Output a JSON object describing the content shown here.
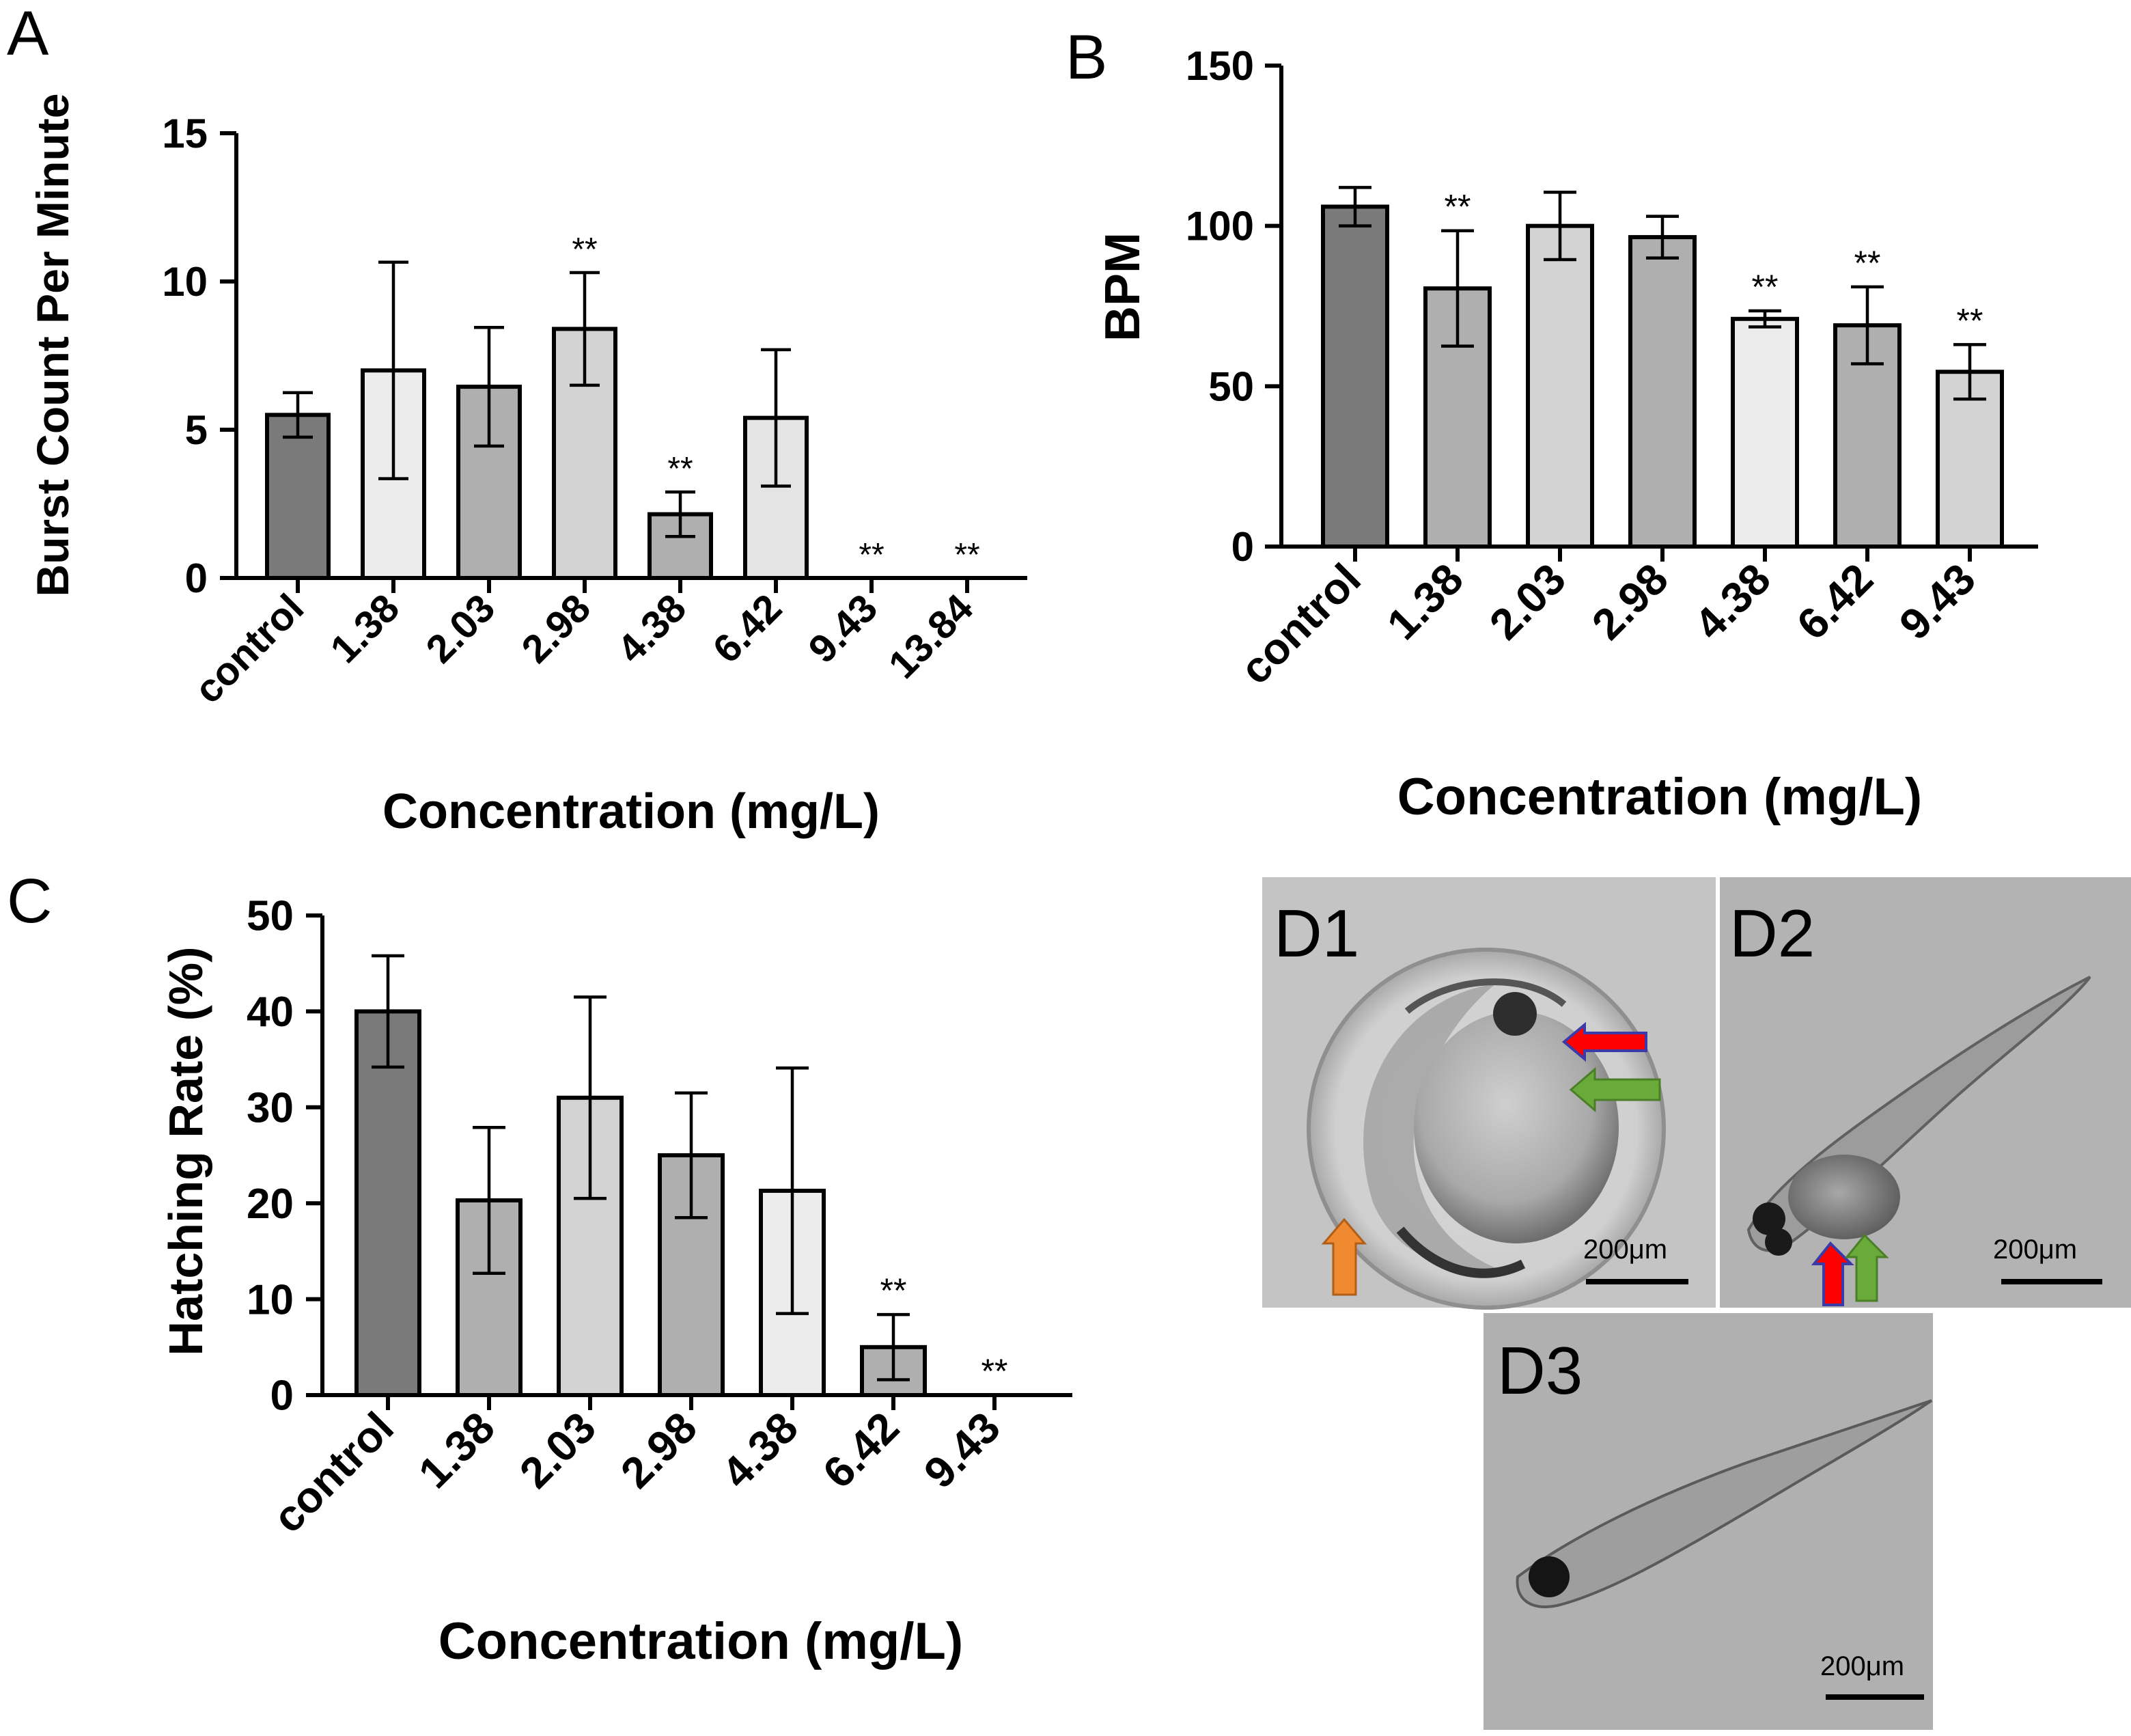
{
  "figure_labels": {
    "A": "A",
    "B": "B",
    "C": "C"
  },
  "chart_data": [
    {
      "panel": "A",
      "type": "bar",
      "title": "",
      "xlabel": "Concentration (mg/L)",
      "ylabel": "Burst Count Per Minute",
      "ylim": [
        0,
        15
      ],
      "yticks": [
        0,
        5,
        10,
        15
      ],
      "categories": [
        "control",
        "1.38",
        "2.03",
        "2.98",
        "4.38",
        "6.42",
        "9.43",
        "13.84"
      ],
      "values": [
        5.5,
        7.0,
        6.45,
        8.4,
        2.15,
        5.4,
        0,
        0
      ],
      "errors": [
        0.75,
        3.65,
        2.0,
        1.9,
        0.75,
        2.3,
        0,
        0
      ],
      "significance": [
        "",
        "",
        "",
        "**",
        "**",
        "",
        "**",
        "**"
      ],
      "bar_colors": [
        "#7a7a7a",
        "#ececec",
        "#afafaf",
        "#d3d3d3",
        "#afafaf",
        "#e4e4e4",
        "#c8c8c8",
        "#c8c8c8"
      ]
    },
    {
      "panel": "B",
      "type": "bar",
      "title": "",
      "xlabel": "Concentration (mg/L)",
      "ylabel": "BPM",
      "ylim": [
        0,
        150
      ],
      "yticks": [
        0,
        50,
        100,
        150
      ],
      "categories": [
        "control",
        "1.38",
        "2.03",
        "2.98",
        "4.38",
        "6.42",
        "9.43"
      ],
      "values": [
        106,
        80.5,
        100,
        96.5,
        71,
        69,
        54.5
      ],
      "errors": [
        6,
        18,
        10.5,
        6.5,
        2.5,
        12,
        8.5
      ],
      "significance": [
        "",
        "**",
        "",
        "",
        "**",
        "**",
        "**"
      ],
      "bar_colors": [
        "#7a7a7a",
        "#afafaf",
        "#d3d3d3",
        "#afafaf",
        "#ececec",
        "#afafaf",
        "#d3d3d3"
      ]
    },
    {
      "panel": "C",
      "type": "bar",
      "title": "",
      "xlabel": "Concentration (mg/L)",
      "ylabel": "Hatching Rate (%)",
      "ylim": [
        0,
        50
      ],
      "yticks": [
        0,
        10,
        20,
        30,
        40,
        50
      ],
      "categories": [
        "control",
        "1.38",
        "2.03",
        "2.98",
        "4.38",
        "6.42",
        "9.43"
      ],
      "values": [
        40,
        20.3,
        31,
        25,
        21.3,
        5,
        0
      ],
      "errors": [
        5.8,
        7.6,
        10.5,
        6.5,
        12.8,
        3.4,
        0
      ],
      "significance": [
        "",
        "",
        "",
        "",
        "",
        "**",
        "**"
      ],
      "bar_colors": [
        "#7a7a7a",
        "#afafaf",
        "#d3d3d3",
        "#afafaf",
        "#ececec",
        "#afafaf",
        "#d3d3d3"
      ]
    }
  ],
  "micrographs": [
    {
      "label": "D1",
      "scale_bar": "200μm"
    },
    {
      "label": "D2",
      "scale_bar": "200μm"
    },
    {
      "label": "D3",
      "scale_bar": "200μm"
    }
  ],
  "colors": {
    "arrow_red": "#ff0000",
    "arrow_red_border": "#3a3aa8",
    "arrow_green": "#6aaa3a",
    "arrow_orange": "#f08a30",
    "micrograph_bg": "#c4c4c4"
  }
}
